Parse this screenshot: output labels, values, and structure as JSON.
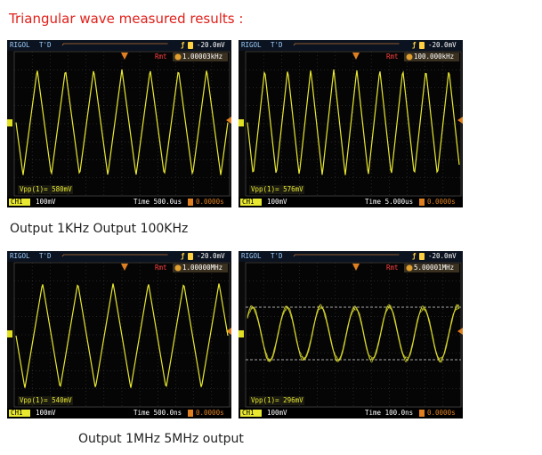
{
  "title": "Triangular wave measured results :",
  "panels": [
    {
      "brand": "RIGOL",
      "trigger_status": "T'D",
      "trigger_level": "-20.0mV",
      "mode": "Rmt",
      "frequency": "1.00003kHz",
      "measurement": "Vpp(1)= 580mV",
      "channel": "CH1",
      "scale": "100mV",
      "timebase": "Time 500.0us",
      "offset": "0.0000s"
    },
    {
      "brand": "RIGOL",
      "trigger_status": "T'D",
      "trigger_level": "-20.0mV",
      "mode": "Rmt",
      "frequency": "100.000kHz",
      "measurement": "Vpp(1)= 576mV",
      "channel": "CH1",
      "scale": "100mV",
      "timebase": "Time 5.000us",
      "offset": "0.0000s"
    },
    {
      "brand": "RIGOL",
      "trigger_status": "T'D",
      "trigger_level": "-20.0mV",
      "mode": "Rmt",
      "frequency": "1.00000MHz",
      "measurement": "Vpp(1)= 540mV",
      "channel": "CH1",
      "scale": "100mV",
      "timebase": "Time 500.0ns",
      "offset": "0.0000s"
    },
    {
      "brand": "RIGOL",
      "trigger_status": "T'D",
      "trigger_level": "-20.0mV",
      "mode": "Rmt",
      "frequency": "5.00001MHz",
      "measurement": "Vpp(1)= 296mV",
      "channel": "CH1",
      "scale": "100mV",
      "timebase": "Time 100.0ns",
      "offset": "0.0000s"
    }
  ],
  "captions": [
    "Output 1KHz Output 100KHz",
    "Output 1MHz 5MHz output"
  ]
}
